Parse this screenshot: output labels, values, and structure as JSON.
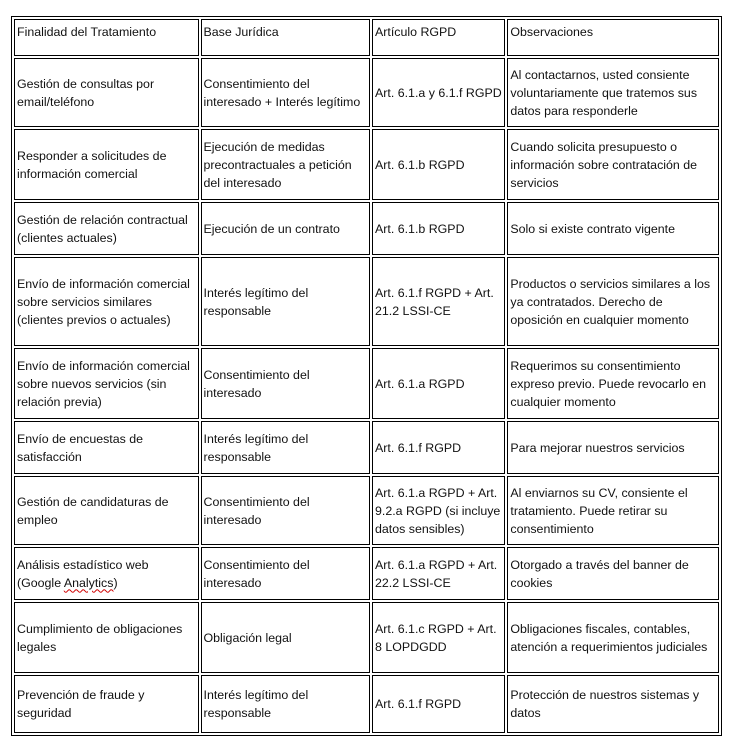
{
  "headers": [
    "Finalidad del Tratamiento",
    "Base Jurídica",
    "Artículo RGPD",
    "Observaciones"
  ],
  "rows": [
    [
      "Gestión de consultas por email/teléfono",
      "Consentimiento del interesado + Interés legítimo",
      "Art. 6.1.a y 6.1.f RGPD",
      "Al contactarnos, usted consiente voluntariamente que tratemos sus datos para responderle"
    ],
    [
      "Responder a solicitudes de información comercial",
      "Ejecución de medidas precontractuales a petición del interesado",
      "Art. 6.1.b RGPD",
      "Cuando solicita presupuesto o información sobre contratación de servicios"
    ],
    [
      "Gestión de relación contractual (clientes actuales)",
      "Ejecución de un contrato",
      "Art. 6.1.b RGPD",
      "Solo si existe contrato vigente"
    ],
    [
      "Envío de información comercial sobre servicios similares (clientes previos o actuales)",
      "Interés legítimo del responsable",
      "Art. 6.1.f RGPD + Art. 21.2 LSSI-CE",
      "Productos o servicios similares a los ya contratados. Derecho de oposición en cualquier momento"
    ],
    [
      "Envío de información comercial sobre nuevos servicios (sin relación previa)",
      "Consentimiento del interesado",
      "Art. 6.1.a RGPD",
      "Requerimos su consentimiento expreso previo. Puede revocarlo en cualquier momento"
    ],
    [
      "Envío de encuestas de satisfacción",
      "Interés legítimo del responsable",
      "Art. 6.1.f RGPD",
      "Para mejorar nuestros servicios"
    ],
    [
      "Gestión de candidaturas de empleo",
      "Consentimiento del interesado",
      "Art. 6.1.a RGPD + Art. 9.2.a RGPD (si incluye datos sensibles)",
      "Al enviarnos su CV, consiente el tratamiento. Puede retirar su consentimiento"
    ],
    [
      "Análisis estadístico web (Google Analytics)",
      "Consentimiento del interesado",
      "Art. 6.1.a RGPD + Art. 22.2 LSSI-CE",
      "Otorgado a través del banner de cookies"
    ],
    [
      "Cumplimiento de obligaciones legales",
      "Obligación legal",
      "Art. 6.1.c RGPD + Art. 8 LOPDGDD",
      "Obligaciones fiscales, contables, atención a requerimientos judiciales"
    ],
    [
      "Prevención de fraude y seguridad",
      "Interés legítimo del responsable",
      "Art. 6.1.f RGPD",
      "Protección de nuestros sistemas y datos"
    ]
  ],
  "row7_col1_parts": [
    "Análisis estadístico web (Google ",
    "Analytics",
    ")"
  ]
}
